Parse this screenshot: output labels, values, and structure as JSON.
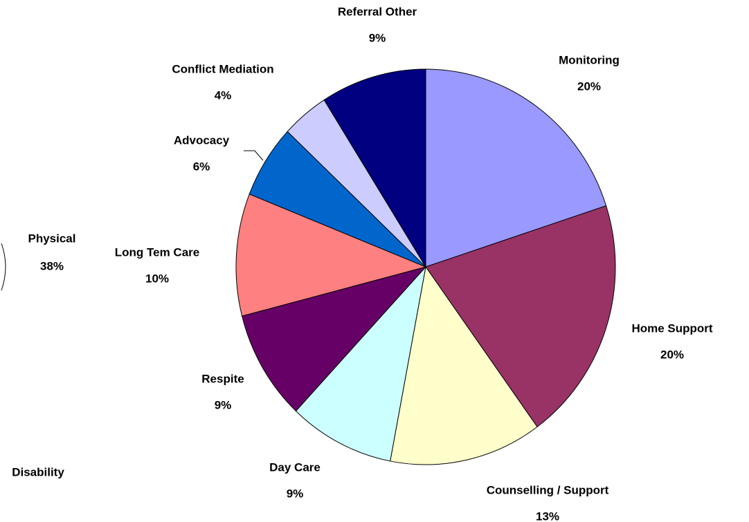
{
  "chart_data": {
    "type": "pie",
    "categories": [
      "Monitoring",
      "Home Support",
      "Counselling / Support",
      "Day Care",
      "Respite",
      "Long Tem Care",
      "Advocacy",
      "Conflict Mediation",
      "Referral Other"
    ],
    "values": [
      20,
      20,
      13,
      9,
      9,
      10,
      6,
      4,
      9
    ],
    "value_labels": [
      "20%",
      "20%",
      "13%",
      "9%",
      "9%",
      "10%",
      "6%",
      "4%",
      "9%"
    ],
    "colors": [
      "#9999ff",
      "#993366",
      "#ffffcc",
      "#ccffff",
      "#660066",
      "#ff8080",
      "#0066cc",
      "#ccccff",
      "#000080"
    ],
    "annotations": [
      "Physical",
      "38%",
      "Disability"
    ]
  }
}
